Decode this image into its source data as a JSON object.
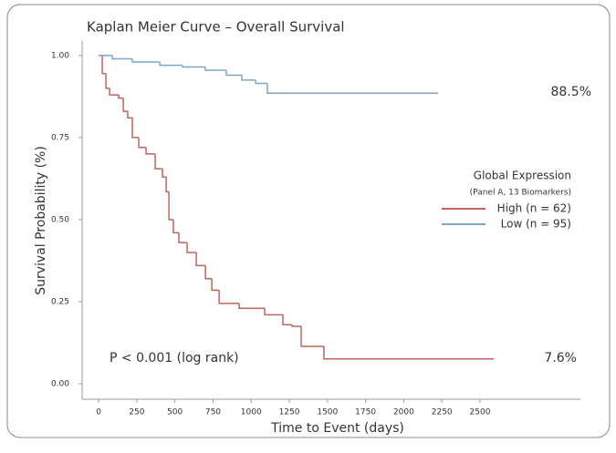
{
  "chart_data": {
    "type": "step",
    "title": "Kaplan Meier Curve – Overall Survival",
    "x_label": "Time to Event (days)",
    "y_label": "Survival Probability (%)",
    "legend_title": "Global Expression",
    "legend_subtitle": "(Panel A, 13 Biomarkers)",
    "legend_position": "right",
    "annotations": [
      "88.5%",
      "7.6%",
      "P < 0.001 (log rank)"
    ],
    "xlim": [
      -108,
      3158
    ],
    "ylim": [
      -0.047,
      1.044
    ],
    "xticks": [
      0,
      250,
      500,
      750,
      1000,
      1250,
      1500,
      1750,
      2000,
      2250,
      2500
    ],
    "yticks": [
      {
        "value": 0,
        "label": "0.00"
      },
      {
        "value": 0.25,
        "label": "0.25"
      },
      {
        "value": 0.5,
        "label": "0.50"
      },
      {
        "value": 0.75,
        "label": "0.75"
      },
      {
        "value": 1,
        "label": "1.00"
      }
    ],
    "series": [
      {
        "name": "High (n = 62)",
        "color": "#c0645e",
        "x": [
          0,
          24,
          48,
          72,
          132,
          162,
          191,
          221,
          263,
          311,
          371,
          419,
          443,
          461,
          490,
          526,
          580,
          640,
          700,
          742,
          790,
          921,
          1089,
          1208,
          1268,
          1328,
          1477,
          2590
        ],
        "values": [
          1,
          0.945,
          0.9,
          0.88,
          0.87,
          0.83,
          0.81,
          0.75,
          0.72,
          0.7,
          0.655,
          0.63,
          0.585,
          0.5,
          0.46,
          0.43,
          0.4,
          0.36,
          0.32,
          0.285,
          0.245,
          0.23,
          0.21,
          0.18,
          0.175,
          0.114,
          0.076,
          0.076
        ]
      },
      {
        "name": "Low (n = 95)",
        "color": "#7ea6c6",
        "x": [
          0,
          90,
          221,
          401,
          550,
          700,
          837,
          939,
          1029,
          1106,
          2225
        ],
        "values": [
          1,
          0.99,
          0.98,
          0.97,
          0.965,
          0.955,
          0.94,
          0.925,
          0.915,
          0.885,
          0.885
        ]
      }
    ]
  }
}
